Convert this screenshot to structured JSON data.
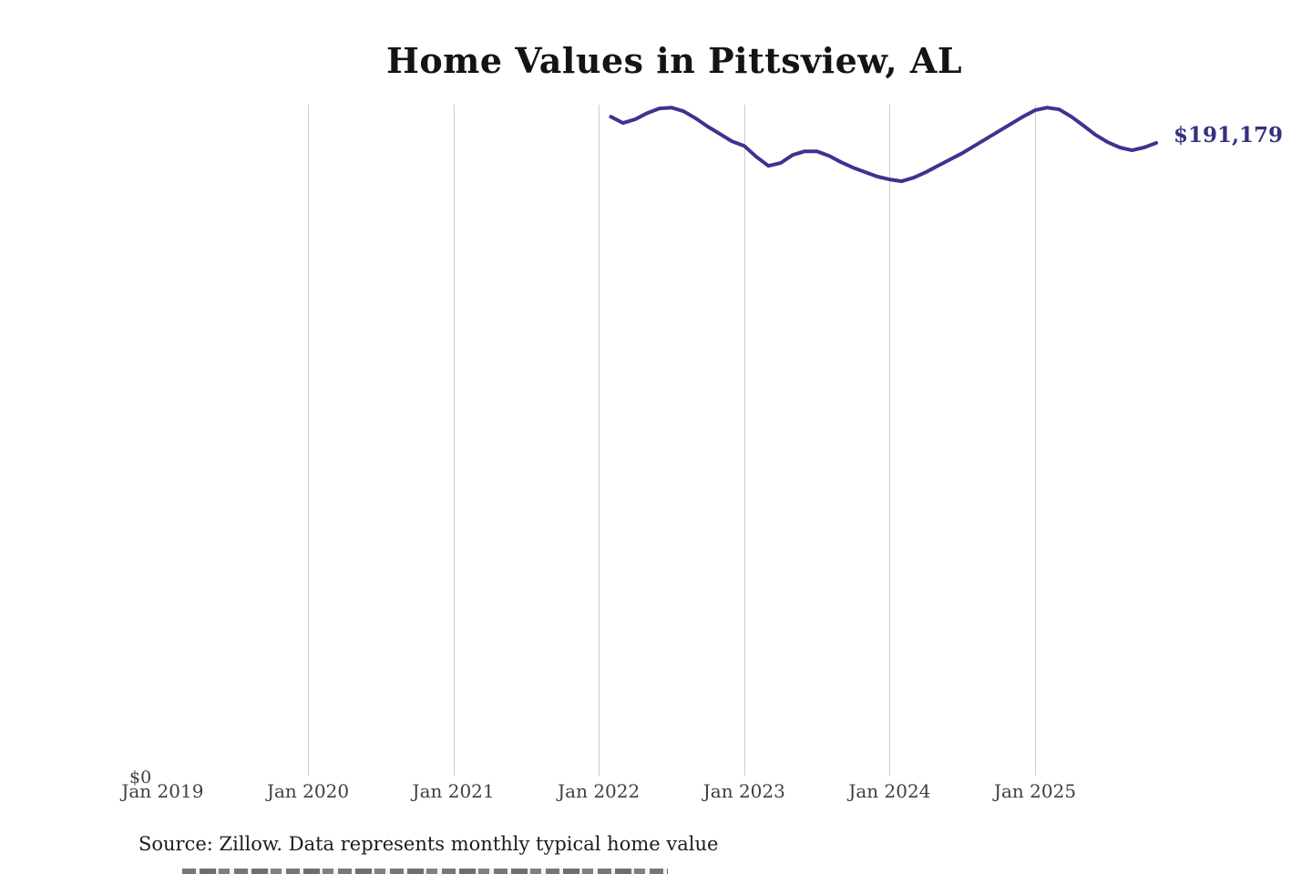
{
  "title": {
    "text": "Home Values in Pittsview, AL"
  },
  "annotation": {
    "latest_value_label": "$191,179"
  },
  "y_axis": {
    "zero_label": "$0"
  },
  "x_axis": {
    "ticks": [
      {
        "label": "Jan 2019",
        "year": 2019,
        "gridline": false
      },
      {
        "label": "Jan 2020",
        "year": 2020,
        "gridline": true
      },
      {
        "label": "Jan 2021",
        "year": 2021,
        "gridline": true
      },
      {
        "label": "Jan 2022",
        "year": 2022,
        "gridline": true
      },
      {
        "label": "Jan 2023",
        "year": 2023,
        "gridline": true
      },
      {
        "label": "Jan 2024",
        "year": 2024,
        "gridline": true
      },
      {
        "label": "Jan 2025",
        "year": 2025,
        "gridline": true
      }
    ]
  },
  "source": {
    "text": "Source: Zillow. Data represents monthly typical home value"
  },
  "colors": {
    "line": "#3b3490",
    "annotation_text": "#35317f",
    "gridline": "#cccccc",
    "axis_text": "#3f3f3f",
    "title_text": "#141414",
    "source_text": "#1c1c1c",
    "background": "#ffffff"
  },
  "chart_data": {
    "type": "line",
    "title": "Home Values in Pittsview, AL",
    "series_name": "Monthly typical home value (USD)",
    "frequency": "monthly",
    "x_start": "Feb 2022",
    "x_end": "Nov 2025",
    "x": [
      2022.0833,
      2022.1667,
      2022.25,
      2022.3333,
      2022.4167,
      2022.5,
      2022.5833,
      2022.6667,
      2022.75,
      2022.8333,
      2022.9167,
      2023.0,
      2023.0833,
      2023.1667,
      2023.25,
      2023.3333,
      2023.4167,
      2023.5,
      2023.5833,
      2023.6667,
      2023.75,
      2023.8333,
      2023.9167,
      2024.0,
      2024.0833,
      2024.1667,
      2024.25,
      2024.3333,
      2024.4167,
      2024.5,
      2024.5833,
      2024.6667,
      2024.75,
      2024.8333,
      2024.9167,
      2025.0,
      2025.0833,
      2025.1667,
      2025.25,
      2025.3333,
      2025.4167,
      2025.5,
      2025.5833,
      2025.6667,
      2025.75,
      2025.8333
    ],
    "values": [
      199100,
      197200,
      198300,
      200200,
      201600,
      201850,
      200750,
      198600,
      196100,
      193900,
      191650,
      190300,
      187000,
      184250,
      185100,
      187550,
      188650,
      188650,
      187300,
      185350,
      183700,
      182350,
      181000,
      180150,
      179600,
      180700,
      182350,
      184300,
      186200,
      188100,
      190300,
      192500,
      194700,
      196900,
      199100,
      201050,
      201850,
      201300,
      199100,
      196400,
      193600,
      191400,
      189800,
      188950,
      189800,
      191179
    ],
    "latest_value": 191179,
    "xlabel": "",
    "ylabel": "",
    "ylim_bottom": 0,
    "x_tick_labels": [
      "Jan 2019",
      "Jan 2020",
      "Jan 2021",
      "Jan 2022",
      "Jan 2023",
      "Jan 2024",
      "Jan 2025"
    ],
    "grid": "vertical-only",
    "legend_position": "none",
    "annotation_at_line_end": "$191,179"
  }
}
